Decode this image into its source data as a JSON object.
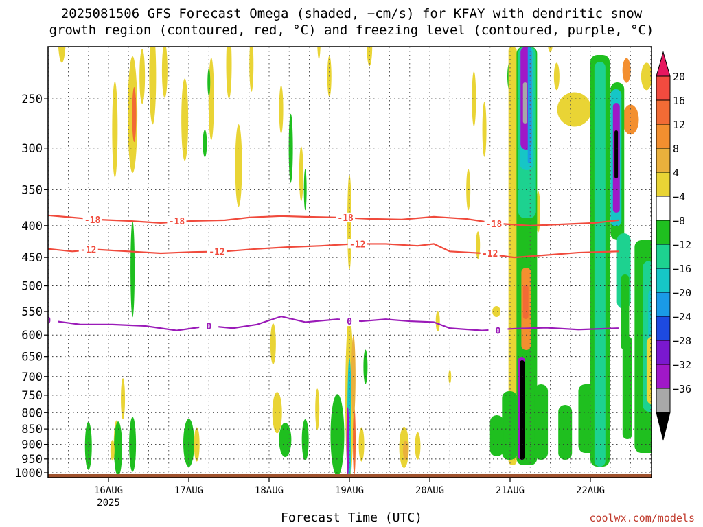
{
  "title_line1": "2025081506 GFS Forecast Omega (shaded, −cm/s) for KFAY with dendritic snow",
  "title_line2": "growth region (contoured, red, °C) and freezing level (contoured, purple, °C)",
  "watermark": "coolwx.com/models",
  "chart_data": {
    "type": "heatmap",
    "title": "2025081506 GFS Forecast Omega (shaded, −cm/s) for KFAY with dendritic snow growth region (contoured, red, °C) and freezing level (contoured, purple, °C)",
    "xlabel": "Forecast Time (UTC)",
    "ylabel": "",
    "x_ticks": [
      "16AUG",
      "17AUG",
      "18AUG",
      "19AUG",
      "20AUG",
      "21AUG",
      "22AUG"
    ],
    "x_tick_sublabel": "2025",
    "y_scale": "log",
    "y_inverted": true,
    "y_ticks": [
      250,
      300,
      350,
      400,
      450,
      500,
      550,
      600,
      650,
      700,
      750,
      800,
      850,
      900,
      950,
      1000
    ],
    "y_range_hpa": [
      200,
      1020
    ],
    "grid": true,
    "colorbar": {
      "labels": [
        "20",
        "16",
        "12",
        "8",
        "4",
        "−4",
        "−8",
        "−12",
        "−16",
        "−20",
        "−24",
        "−28",
        "−32",
        "−36"
      ],
      "colors": [
        "#e6175f",
        "#f24b3f",
        "#f26b35",
        "#f38f2f",
        "#eab03c",
        "#e9d435",
        "#ffffff",
        "#1fbf1f",
        "#1dd290",
        "#16c6c6",
        "#1a9ae6",
        "#1d4ae0",
        "#7a18cf",
        "#a018c8",
        "#a8a8a8",
        "#000000"
      ]
    },
    "contours": [
      {
        "label": "-18",
        "color": "#f04a3c",
        "points_day_hpa": [
          [
            0,
            385
          ],
          [
            0.3,
            388
          ],
          [
            0.6,
            391
          ],
          [
            1.0,
            393
          ],
          [
            1.4,
            396
          ],
          [
            1.8,
            393
          ],
          [
            2.2,
            392
          ],
          [
            2.5,
            388
          ],
          [
            2.9,
            386
          ],
          [
            3.2,
            387
          ],
          [
            3.6,
            388
          ],
          [
            4.0,
            390
          ],
          [
            4.4,
            391
          ],
          [
            4.8,
            387
          ],
          [
            5.2,
            390
          ],
          [
            5.6,
            397
          ],
          [
            6.0,
            400
          ],
          [
            6.4,
            398
          ],
          [
            6.8,
            396
          ],
          [
            7.1,
            392
          ]
        ],
        "label_positions": [
          0.55,
          1.6,
          3.7,
          5.55
        ]
      },
      {
        "label": "-12",
        "color": "#f04a3c",
        "points_day_hpa": [
          [
            0,
            436
          ],
          [
            0.3,
            440
          ],
          [
            0.6,
            437
          ],
          [
            1.0,
            440
          ],
          [
            1.4,
            443
          ],
          [
            1.8,
            441
          ],
          [
            2.2,
            440
          ],
          [
            2.6,
            436
          ],
          [
            3.0,
            433
          ],
          [
            3.4,
            431
          ],
          [
            3.8,
            428
          ],
          [
            4.2,
            428
          ],
          [
            4.6,
            431
          ],
          [
            4.8,
            428
          ],
          [
            5.0,
            440
          ],
          [
            5.4,
            443
          ],
          [
            5.8,
            450
          ],
          [
            6.2,
            446
          ],
          [
            6.6,
            442
          ],
          [
            7.1,
            440
          ]
        ],
        "label_positions": [
          0.5,
          2.1,
          3.85,
          5.5
        ]
      },
      {
        "label": "0",
        "color": "#9a1ab8",
        "points_day_hpa": [
          [
            0,
            568
          ],
          [
            0.4,
            577
          ],
          [
            0.8,
            577
          ],
          [
            1.2,
            580
          ],
          [
            1.6,
            590
          ],
          [
            2.0,
            580
          ],
          [
            2.3,
            585
          ],
          [
            2.6,
            577
          ],
          [
            2.9,
            560
          ],
          [
            3.2,
            572
          ],
          [
            3.6,
            566
          ],
          [
            3.9,
            570
          ],
          [
            4.2,
            566
          ],
          [
            4.5,
            570
          ],
          [
            4.8,
            572
          ],
          [
            5.0,
            585
          ],
          [
            5.4,
            590
          ],
          [
            5.8,
            586
          ],
          [
            6.2,
            584
          ],
          [
            6.6,
            588
          ],
          [
            7.1,
            585
          ]
        ],
        "label_positions": [
          0.0,
          2.0,
          3.75,
          5.6
        ]
      }
    ],
    "ground_hpa": 1000
  }
}
